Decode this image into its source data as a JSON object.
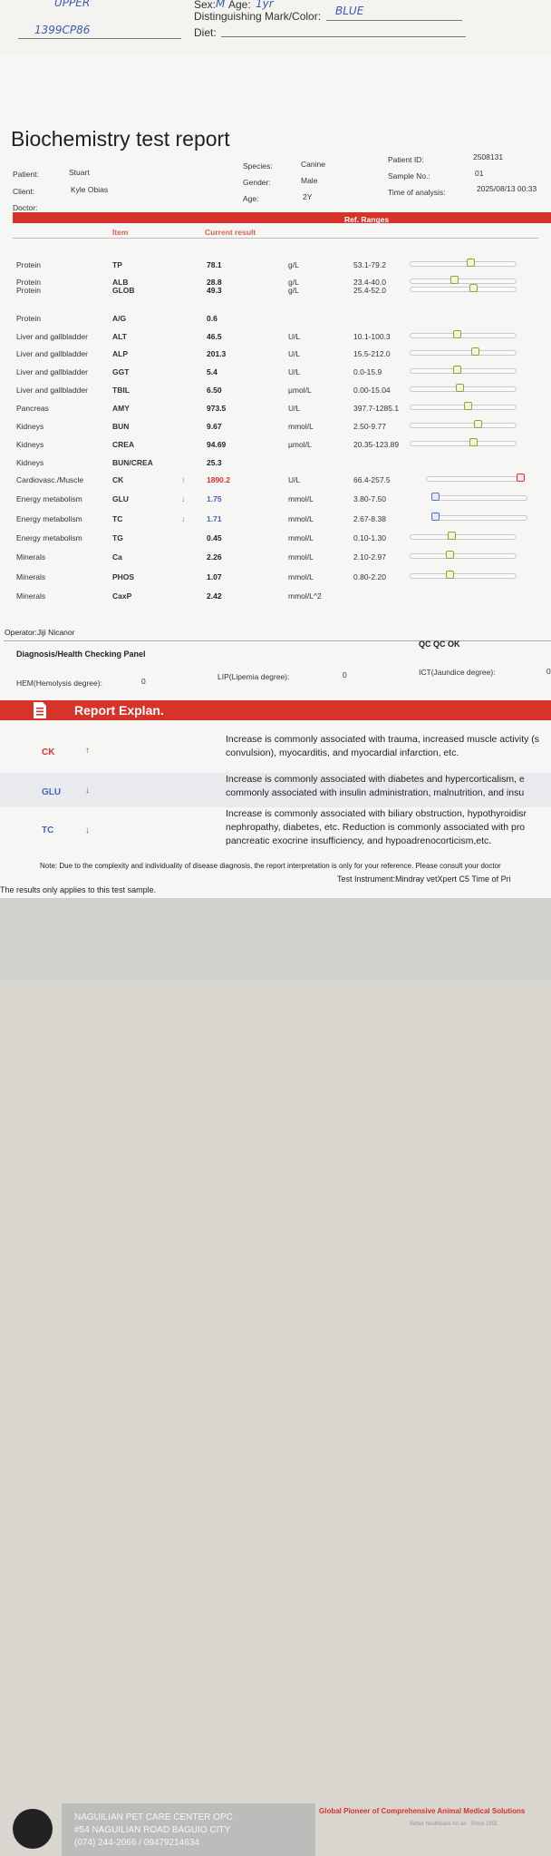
{
  "top_form": {
    "hand_1": "UPPER",
    "hand_2": "1399CP86",
    "sex_label": "Sex:",
    "sex_value": "M",
    "age_label": "Age:",
    "age_value": "1yr",
    "mark_label": "Distinguishing Mark/Color:",
    "mark_value": "BLUE",
    "diet_label": "Diet:"
  },
  "report": {
    "title": "Biochemistry test report",
    "patient_label": "Patient:",
    "patient": "Stuart",
    "client_label": "Client:",
    "client": "Kyle Obias",
    "doctor_label": "Doctor:",
    "species_label": "Species:",
    "species": "Canine",
    "gender_label": "Gender:",
    "gender": "Male",
    "age_label": "Age:",
    "age": "2Y",
    "pid_label": "Patient ID:",
    "pid": "2508131",
    "sample_label": "Sample No.:",
    "sample": "01",
    "time_label": "Time of analysis:",
    "time": "2025/08/13 00:33"
  },
  "table": {
    "col_item": "Item",
    "col_result": "Current result",
    "col_ref": "Ref. Ranges",
    "rows": [
      {
        "cat": "Protein",
        "item": "TP",
        "arrow": "",
        "result": "78.1",
        "unit": "g/L",
        "range": "53.1-79.2",
        "pos": 0.58,
        "flag": "normal"
      },
      {
        "cat": "Protein",
        "item": "ALB",
        "arrow": "",
        "result": "28.8",
        "unit": "g/L",
        "range": "23.4-40.0",
        "pos": 0.42,
        "flag": "normal"
      },
      {
        "cat": "Protein",
        "item": "GLOB",
        "arrow": "",
        "result": "49.3",
        "unit": "g/L",
        "range": "25.4-52.0",
        "pos": 0.6,
        "flag": "normal"
      },
      {
        "cat": "Protein",
        "item": "A/G",
        "arrow": "",
        "result": "0.6",
        "unit": "",
        "range": "",
        "pos": null,
        "flag": "normal"
      },
      {
        "cat": "Liver and gallbladder",
        "item": "ALT",
        "arrow": "",
        "result": "46.5",
        "unit": "U/L",
        "range": "10.1-100.3",
        "pos": 0.45,
        "flag": "normal"
      },
      {
        "cat": "Liver and gallbladder",
        "item": "ALP",
        "arrow": "",
        "result": "201.3",
        "unit": "U/L",
        "range": "15.5-212.0",
        "pos": 0.62,
        "flag": "normal"
      },
      {
        "cat": "Liver and gallbladder",
        "item": "GGT",
        "arrow": "",
        "result": "5.4",
        "unit": "U/L",
        "range": "0.0-15.9",
        "pos": 0.45,
        "flag": "normal"
      },
      {
        "cat": "Liver and gallbladder",
        "item": "TBIL",
        "arrow": "",
        "result": "6.50",
        "unit": "µmol/L",
        "range": "0.00-15.04",
        "pos": 0.47,
        "flag": "normal"
      },
      {
        "cat": "Pancreas",
        "item": "AMY",
        "arrow": "",
        "result": "973.5",
        "unit": "U/L",
        "range": "397.7-1285.1",
        "pos": 0.55,
        "flag": "normal"
      },
      {
        "cat": "Kidneys",
        "item": "BUN",
        "arrow": "",
        "result": "9.67",
        "unit": "mmol/L",
        "range": "2.50-9.77",
        "pos": 0.65,
        "flag": "normal"
      },
      {
        "cat": "Kidneys",
        "item": "CREA",
        "arrow": "",
        "result": "94.69",
        "unit": "µmol/L",
        "range": "20.35-123.89",
        "pos": 0.6,
        "flag": "normal"
      },
      {
        "cat": "Kidneys",
        "item": "BUN/CREA",
        "arrow": "",
        "result": "25.3",
        "unit": "",
        "range": "",
        "pos": null,
        "flag": "normal"
      },
      {
        "cat": "Cardiovasc./Muscle",
        "item": "CK",
        "arrow": "↑",
        "result": "1890.2",
        "unit": "U/L",
        "range": "66.4-257.5",
        "pos": 1.0,
        "flag": "high"
      },
      {
        "cat": "Energy metabolism",
        "item": "GLU",
        "arrow": "↓",
        "result": "1.75",
        "unit": "mmol/L",
        "range": "3.80-7.50",
        "pos": 0.0,
        "flag": "low"
      },
      {
        "cat": "Energy metabolism",
        "item": "TC",
        "arrow": "↓",
        "result": "1.71",
        "unit": "mmol/L",
        "range": "2.67-8.38",
        "pos": 0.0,
        "flag": "low"
      },
      {
        "cat": "Energy metabolism",
        "item": "TG",
        "arrow": "",
        "result": "0.45",
        "unit": "mmol/L",
        "range": "0.10-1.30",
        "pos": 0.4,
        "flag": "normal"
      },
      {
        "cat": "Minerals",
        "item": "Ca",
        "arrow": "",
        "result": "2.26",
        "unit": "mmol/L",
        "range": "2.10-2.97",
        "pos": 0.38,
        "flag": "normal"
      },
      {
        "cat": "Minerals",
        "item": "PHOS",
        "arrow": "",
        "result": "1.07",
        "unit": "mmol/L",
        "range": "0.80-2.20",
        "pos": 0.38,
        "flag": "normal"
      },
      {
        "cat": "Minerals",
        "item": "CaxP",
        "arrow": "",
        "result": "2.42",
        "unit": "mmol/L^2",
        "range": "",
        "pos": null,
        "flag": "normal"
      }
    ]
  },
  "operator": "Operator:Jiji Nicanor",
  "diagnosis_title": "Diagnosis/Health Checking Panel",
  "qc": "QC QC OK",
  "indices": {
    "hem_label": "HEM(Hemolysis degree):",
    "hem_value": "0",
    "lip_label": "LIP(Lipemia degree):",
    "lip_value": "0",
    "ict_label": "ICT(Jaundice degree):",
    "ict_value": "0"
  },
  "explanation": {
    "title": "Report Explan.",
    "icon": "document-icon",
    "items": [
      {
        "name": "CK",
        "arrow": "↑",
        "line1": "Increase is commonly associated with trauma, increased muscle activity (s",
        "line2": "convulsion), myocarditis, and myocardial infarction, etc.",
        "line3": ""
      },
      {
        "name": "GLU",
        "arrow": "↓",
        "line1": "Increase is commonly associated with diabetes and hypercorticalism, e",
        "line2": "commonly associated with insulin administration, malnutrition, and insu",
        "line3": ""
      },
      {
        "name": "TC",
        "arrow": "↓",
        "line1": "Increase is commonly associated with biliary obstruction, hypothyroidisr",
        "line2": "nephropathy, diabetes, etc. Reduction is commonly associated with pro",
        "line3": "pancreatic exocrine insufficiency, and hypoadrenocorticism,etc."
      }
    ]
  },
  "note": "Note: Due to the complexity and individuality of disease diagnosis, the report interpretation is only for your reference. Please consult your doctor",
  "applies": "The results only applies to this test sample.",
  "instrument": "Test Instrument:Mindray vetXpert C5     Time of Pri",
  "footer": {
    "clinic": "NAGUILIAN PET CARE CENTER OPC",
    "address": "#54 NAGUILIAN ROAD BAGUIO CITY",
    "phone": "(074) 244-2066 / 09479214634",
    "slogan": "Global Pioneer of Comprehensive Animal Medical Solutions",
    "better": "Better healthcare for all  ·  Since 1991",
    "colors": {
      "accent": "#d8332a",
      "knob_normal": "#8aa82e",
      "knob_low": "#5670c8",
      "knob_high": "#dd3333",
      "low_text": "#4a63c0",
      "high_text": "#d8332a"
    }
  }
}
